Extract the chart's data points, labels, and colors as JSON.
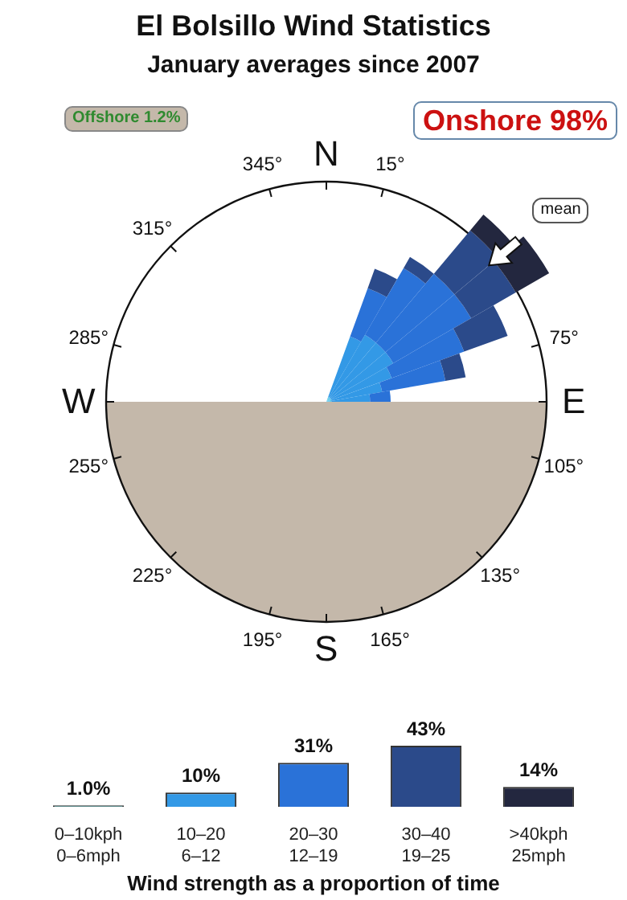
{
  "chart_data": [
    {
      "type": "other",
      "title": "El Bolsillo Wind Statistics",
      "subtitle": "January averages since 2007",
      "annotations": [
        "Offshore 1.2%",
        "Onshore 98%",
        "mean",
        "N",
        "15°",
        "75°",
        "E",
        "105°",
        "135°",
        "165°",
        "S",
        "195°",
        "225°",
        "255°",
        "W",
        "285°",
        "315°",
        "345°"
      ]
    },
    {
      "type": "bar",
      "categories": [
        "0–10kph\n0–6mph",
        "10–20\n6–12",
        "20–30\n12–19",
        "30–40\n19–25",
        ">40kph\n25mph"
      ],
      "values": [
        1,
        10,
        31,
        43,
        14
      ],
      "colors": [
        "#5a8a8a",
        "#3399e6",
        "#2a72d8",
        "#2b4a8a",
        "#23273f"
      ],
      "value_labels": [
        "1.0%",
        "10%",
        "31%",
        "43%",
        "14%"
      ],
      "xlabel": "Wind strength as a proportion of time"
    }
  ]
}
